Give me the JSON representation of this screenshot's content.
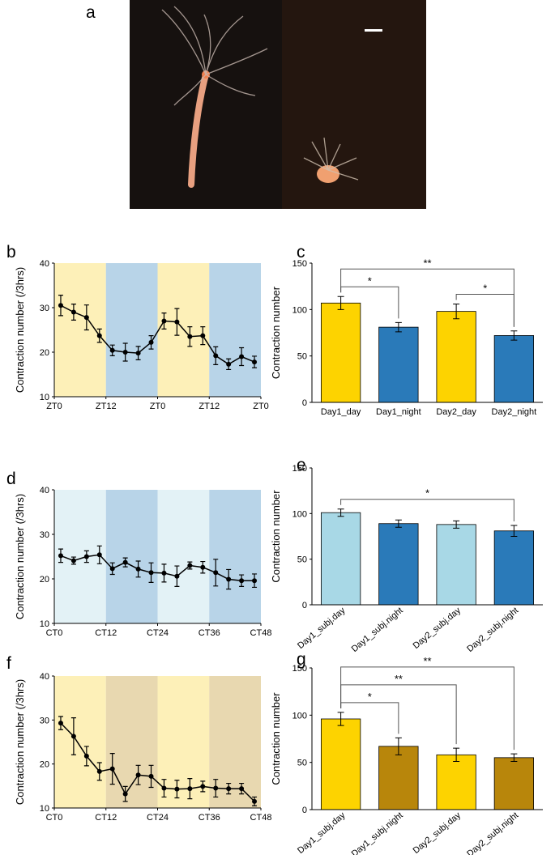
{
  "image_panel": {
    "label": "a"
  },
  "chart_data": [
    {
      "panel": "b",
      "type": "line",
      "y_label": "Contraction number (/3hrs)",
      "x": [
        1.5,
        4.5,
        7.5,
        10.5,
        13.5,
        16.5,
        19.5,
        22.5,
        25.5,
        28.5,
        31.5,
        34.5,
        37.5,
        40.5,
        43.5,
        46.5
      ],
      "values": [
        30.5,
        29,
        27.8,
        23.7,
        20.4,
        20,
        19.8,
        22.2,
        27,
        26.8,
        23.5,
        23.7,
        19.2,
        17.3,
        19,
        17.8
      ],
      "errors": [
        2.3,
        1.8,
        2.8,
        1.5,
        1.2,
        2,
        1.5,
        1.5,
        1.8,
        3,
        2.2,
        2,
        2,
        1.2,
        2,
        1.3
      ],
      "color": "#000000",
      "xlim": [
        0,
        48
      ],
      "xticks": [
        {
          "value": 0,
          "label": "ZT0"
        },
        {
          "value": 12,
          "label": "ZT12"
        },
        {
          "value": 24,
          "label": "ZT0"
        },
        {
          "value": 36,
          "label": "ZT12"
        },
        {
          "value": 48,
          "label": "ZT0"
        }
      ],
      "ylim": [
        10,
        40
      ],
      "yticks": [
        10,
        20,
        30,
        40
      ],
      "band_colors": [
        "#fdf0b8",
        "#b8d4e8",
        "#fdf0b8",
        "#b8d4e8"
      ]
    },
    {
      "panel": "c",
      "type": "bar",
      "y_label": "Contraction number",
      "categories": [
        "Day1_day",
        "Day1_night",
        "Day2_day",
        "Day2_night"
      ],
      "values": [
        107,
        81,
        98,
        72
      ],
      "errors": [
        7,
        5,
        8,
        5
      ],
      "colors": [
        "#fdd300",
        "#2a7ab9",
        "#fdd300",
        "#2a7ab9"
      ],
      "ylim": [
        0,
        150
      ],
      "yticks": [
        0,
        50,
        100,
        150
      ],
      "rotate_labels": false,
      "significance": [
        {
          "pair": [
            "Day1_day",
            "Day1_night"
          ],
          "label": "*"
        },
        {
          "pair": [
            "Day2_day",
            "Day2_night"
          ],
          "label": "*"
        },
        {
          "pair": [
            "Day1_day",
            "Day2_night"
          ],
          "label": "**"
        }
      ]
    },
    {
      "panel": "d",
      "type": "line",
      "y_label": "Contraction number (/3hrs)",
      "x": [
        1.5,
        4.5,
        7.5,
        10.5,
        13.5,
        16.5,
        19.5,
        22.5,
        25.5,
        28.5,
        31.5,
        34.5,
        37.5,
        40.5,
        43.5,
        46.5
      ],
      "values": [
        25.2,
        24.1,
        25,
        25.4,
        22.3,
        23.7,
        22.2,
        21.4,
        21.3,
        20.6,
        23,
        22.6,
        21.4,
        19.9,
        19.6,
        19.6
      ],
      "errors": [
        1.5,
        0.8,
        1.3,
        2,
        1.3,
        1,
        1.8,
        2.2,
        2,
        2.3,
        0.8,
        1.3,
        3,
        2.2,
        1.3,
        1.5
      ],
      "color": "#000000",
      "xlim": [
        0,
        48
      ],
      "xticks": [
        {
          "value": 0,
          "label": "CT0"
        },
        {
          "value": 12,
          "label": "CT12"
        },
        {
          "value": 24,
          "label": "CT24"
        },
        {
          "value": 36,
          "label": "CT36"
        },
        {
          "value": 48,
          "label": "CT48"
        }
      ],
      "ylim": [
        10,
        40
      ],
      "yticks": [
        10,
        20,
        30,
        40
      ],
      "band_colors": [
        "#e3f2f6",
        "#b8d4e8",
        "#e3f2f6",
        "#b8d4e8"
      ]
    },
    {
      "panel": "e",
      "type": "bar",
      "y_label": "Contraction number",
      "categories": [
        "Day1_subj.day",
        "Day1_subj.night",
        "Day2_subj.day",
        "Day2_subj.night"
      ],
      "values": [
        101,
        89,
        88,
        81
      ],
      "errors": [
        4,
        4,
        4,
        6
      ],
      "colors": [
        "#a8d8e6",
        "#2a7ab9",
        "#a8d8e6",
        "#2a7ab9"
      ],
      "ylim": [
        0,
        150
      ],
      "yticks": [
        0,
        50,
        100,
        150
      ],
      "rotate_labels": true,
      "significance": [
        {
          "pair": [
            "Day1_subj.day",
            "Day2_subj.night"
          ],
          "label": "*"
        }
      ]
    },
    {
      "panel": "f",
      "type": "line",
      "y_label": "Contraction number (/3hrs)",
      "x": [
        1.5,
        4.5,
        7.5,
        10.5,
        13.5,
        16.5,
        19.5,
        22.5,
        25.5,
        28.5,
        31.5,
        34.5,
        37.5,
        40.5,
        43.5,
        46.5
      ],
      "values": [
        29.3,
        26.3,
        21.8,
        18.3,
        18.9,
        13.2,
        17.5,
        17.2,
        14.5,
        14.3,
        14.4,
        14.9,
        14.5,
        14.4,
        14.4,
        11.5
      ],
      "errors": [
        1.5,
        4.2,
        2.2,
        2,
        3.5,
        1.7,
        2.2,
        2.5,
        2,
        2,
        2.3,
        1.2,
        2,
        1.2,
        1.2,
        1
      ],
      "color": "#000000",
      "xlim": [
        0,
        48
      ],
      "xticks": [
        {
          "value": 0,
          "label": "CT0"
        },
        {
          "value": 12,
          "label": "CT12"
        },
        {
          "value": 24,
          "label": "CT24"
        },
        {
          "value": 36,
          "label": "CT36"
        },
        {
          "value": 48,
          "label": "CT48"
        }
      ],
      "ylim": [
        10,
        40
      ],
      "yticks": [
        10,
        20,
        30,
        40
      ],
      "band_colors": [
        "#fdf0b8",
        "#e8d8b0",
        "#fdf0b8",
        "#e8d8b0"
      ]
    },
    {
      "panel": "g",
      "type": "bar",
      "y_label": "Contraction number",
      "categories": [
        "Day1_subj.day",
        "Day1_subj.night",
        "Day2_subj.day",
        "Day2_subj.night"
      ],
      "values": [
        96,
        67,
        58,
        55
      ],
      "errors": [
        7,
        9,
        7,
        4
      ],
      "colors": [
        "#fdd300",
        "#b8860b",
        "#fdd300",
        "#b8860b"
      ],
      "ylim": [
        0,
        150
      ],
      "yticks": [
        0,
        50,
        100,
        150
      ],
      "rotate_labels": true,
      "significance": [
        {
          "pair": [
            "Day1_subj.day",
            "Day1_subj.night"
          ],
          "label": "*"
        },
        {
          "pair": [
            "Day1_subj.day",
            "Day2_subj.day"
          ],
          "label": "**"
        },
        {
          "pair": [
            "Day1_subj.day",
            "Day2_subj.night"
          ],
          "label": "**"
        }
      ]
    }
  ]
}
